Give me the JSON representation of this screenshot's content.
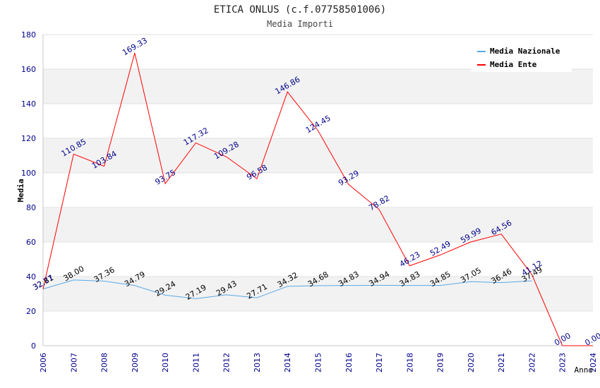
{
  "title": "ETICA ONLUS (c.f.07758501006)",
  "subtitle": "Media Importi",
  "chart_data": {
    "type": "line",
    "title": "ETICA ONLUS (c.f.07758501006)",
    "subtitle": "Media Importi",
    "xlabel": "Anno",
    "ylabel": "Media",
    "ylim": [
      0,
      180
    ],
    "yticks": [
      0,
      20,
      40,
      60,
      80,
      100,
      120,
      140,
      160,
      180
    ],
    "x": [
      "2006",
      "2007",
      "2008",
      "2009",
      "2010",
      "2011",
      "2012",
      "2013",
      "2014",
      "2015",
      "2016",
      "2017",
      "2018",
      "2019",
      "2020",
      "2021",
      "2022",
      "2023",
      "2024"
    ],
    "legend_position": "top-right",
    "series": [
      {
        "name": "Media Nazionale",
        "color": "#5aa9e6",
        "values": [
          32.81,
          38.0,
          37.36,
          34.79,
          29.24,
          27.19,
          29.43,
          27.71,
          34.32,
          34.68,
          34.83,
          34.94,
          34.83,
          34.85,
          37.05,
          36.46,
          37.49,
          null,
          null
        ],
        "labels": [
          "32.81",
          "38.00",
          "37.36",
          "34.79",
          "29.24",
          "27.19",
          "29.43",
          "27.71",
          "34.32",
          "34.68",
          "34.83",
          "34.94",
          "34.83",
          "34.85",
          "37.05",
          "36.46",
          "37.49",
          null,
          null
        ],
        "label_color": "#000000"
      },
      {
        "name": "Media Ente",
        "color": "#ff0000",
        "values": [
          32.77,
          110.85,
          103.84,
          169.33,
          93.75,
          117.32,
          109.28,
          96.58,
          146.86,
          124.45,
          93.29,
          78.82,
          46.23,
          52.49,
          59.99,
          64.56,
          41.12,
          0.0,
          0.0
        ],
        "labels": [
          "32.77",
          "110.85",
          "103.84",
          "169.33",
          "93.75",
          "117.32",
          "109.28",
          "96.58",
          "146.86",
          "124.45",
          "93.29",
          "78.82",
          "46.23",
          "52.49",
          "59.99",
          "64.56",
          "41.12",
          "0.00",
          "0.00"
        ],
        "label_color": "#00008b"
      }
    ]
  }
}
